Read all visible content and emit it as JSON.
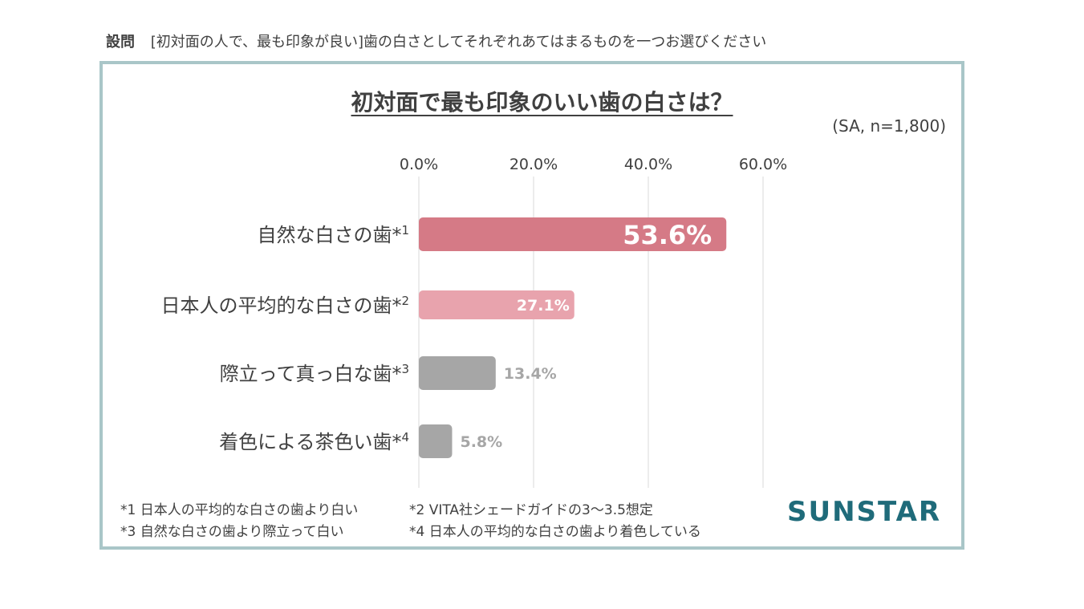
{
  "question": {
    "label": "設問",
    "text": "[初対面の人で、最も印象が良い]歯の白さとしてそれぞれあてはまるものを一つお選びください"
  },
  "chart_data": {
    "type": "bar",
    "orientation": "horizontal",
    "title": "初対面で最も印象のいい歯の白さは？",
    "subtitle": "(SA, n=1,800)",
    "categories": [
      "自然な白さの歯*1",
      "日本人の平均的な白さの歯*2",
      "際立って真っ白な歯*3",
      "着色による茶色い歯*4"
    ],
    "values": [
      53.6,
      27.1,
      13.4,
      5.8
    ],
    "value_labels": [
      "53.6%",
      "27.1%",
      "13.4%",
      "5.8%"
    ],
    "xlim": [
      0,
      60
    ],
    "ticks": [
      0,
      20,
      40,
      60
    ],
    "tick_labels": [
      "0.0%",
      "20.0%",
      "40.0%",
      "60.0%"
    ],
    "grid": true,
    "axis_position": "top",
    "colors": [
      "#d57a86",
      "#e8a3ad",
      "#a6a6a6",
      "#a6a6a6"
    ]
  },
  "footnotes": [
    "*1 日本人の平均的な白さの歯より白い",
    "*2 VITA社シェードガイドの3～3.5想定",
    "*3 自然な白さの歯より際立って白い",
    "*4 日本人の平均的な白さの歯より着色している"
  ],
  "logo": "SUNSTAR"
}
